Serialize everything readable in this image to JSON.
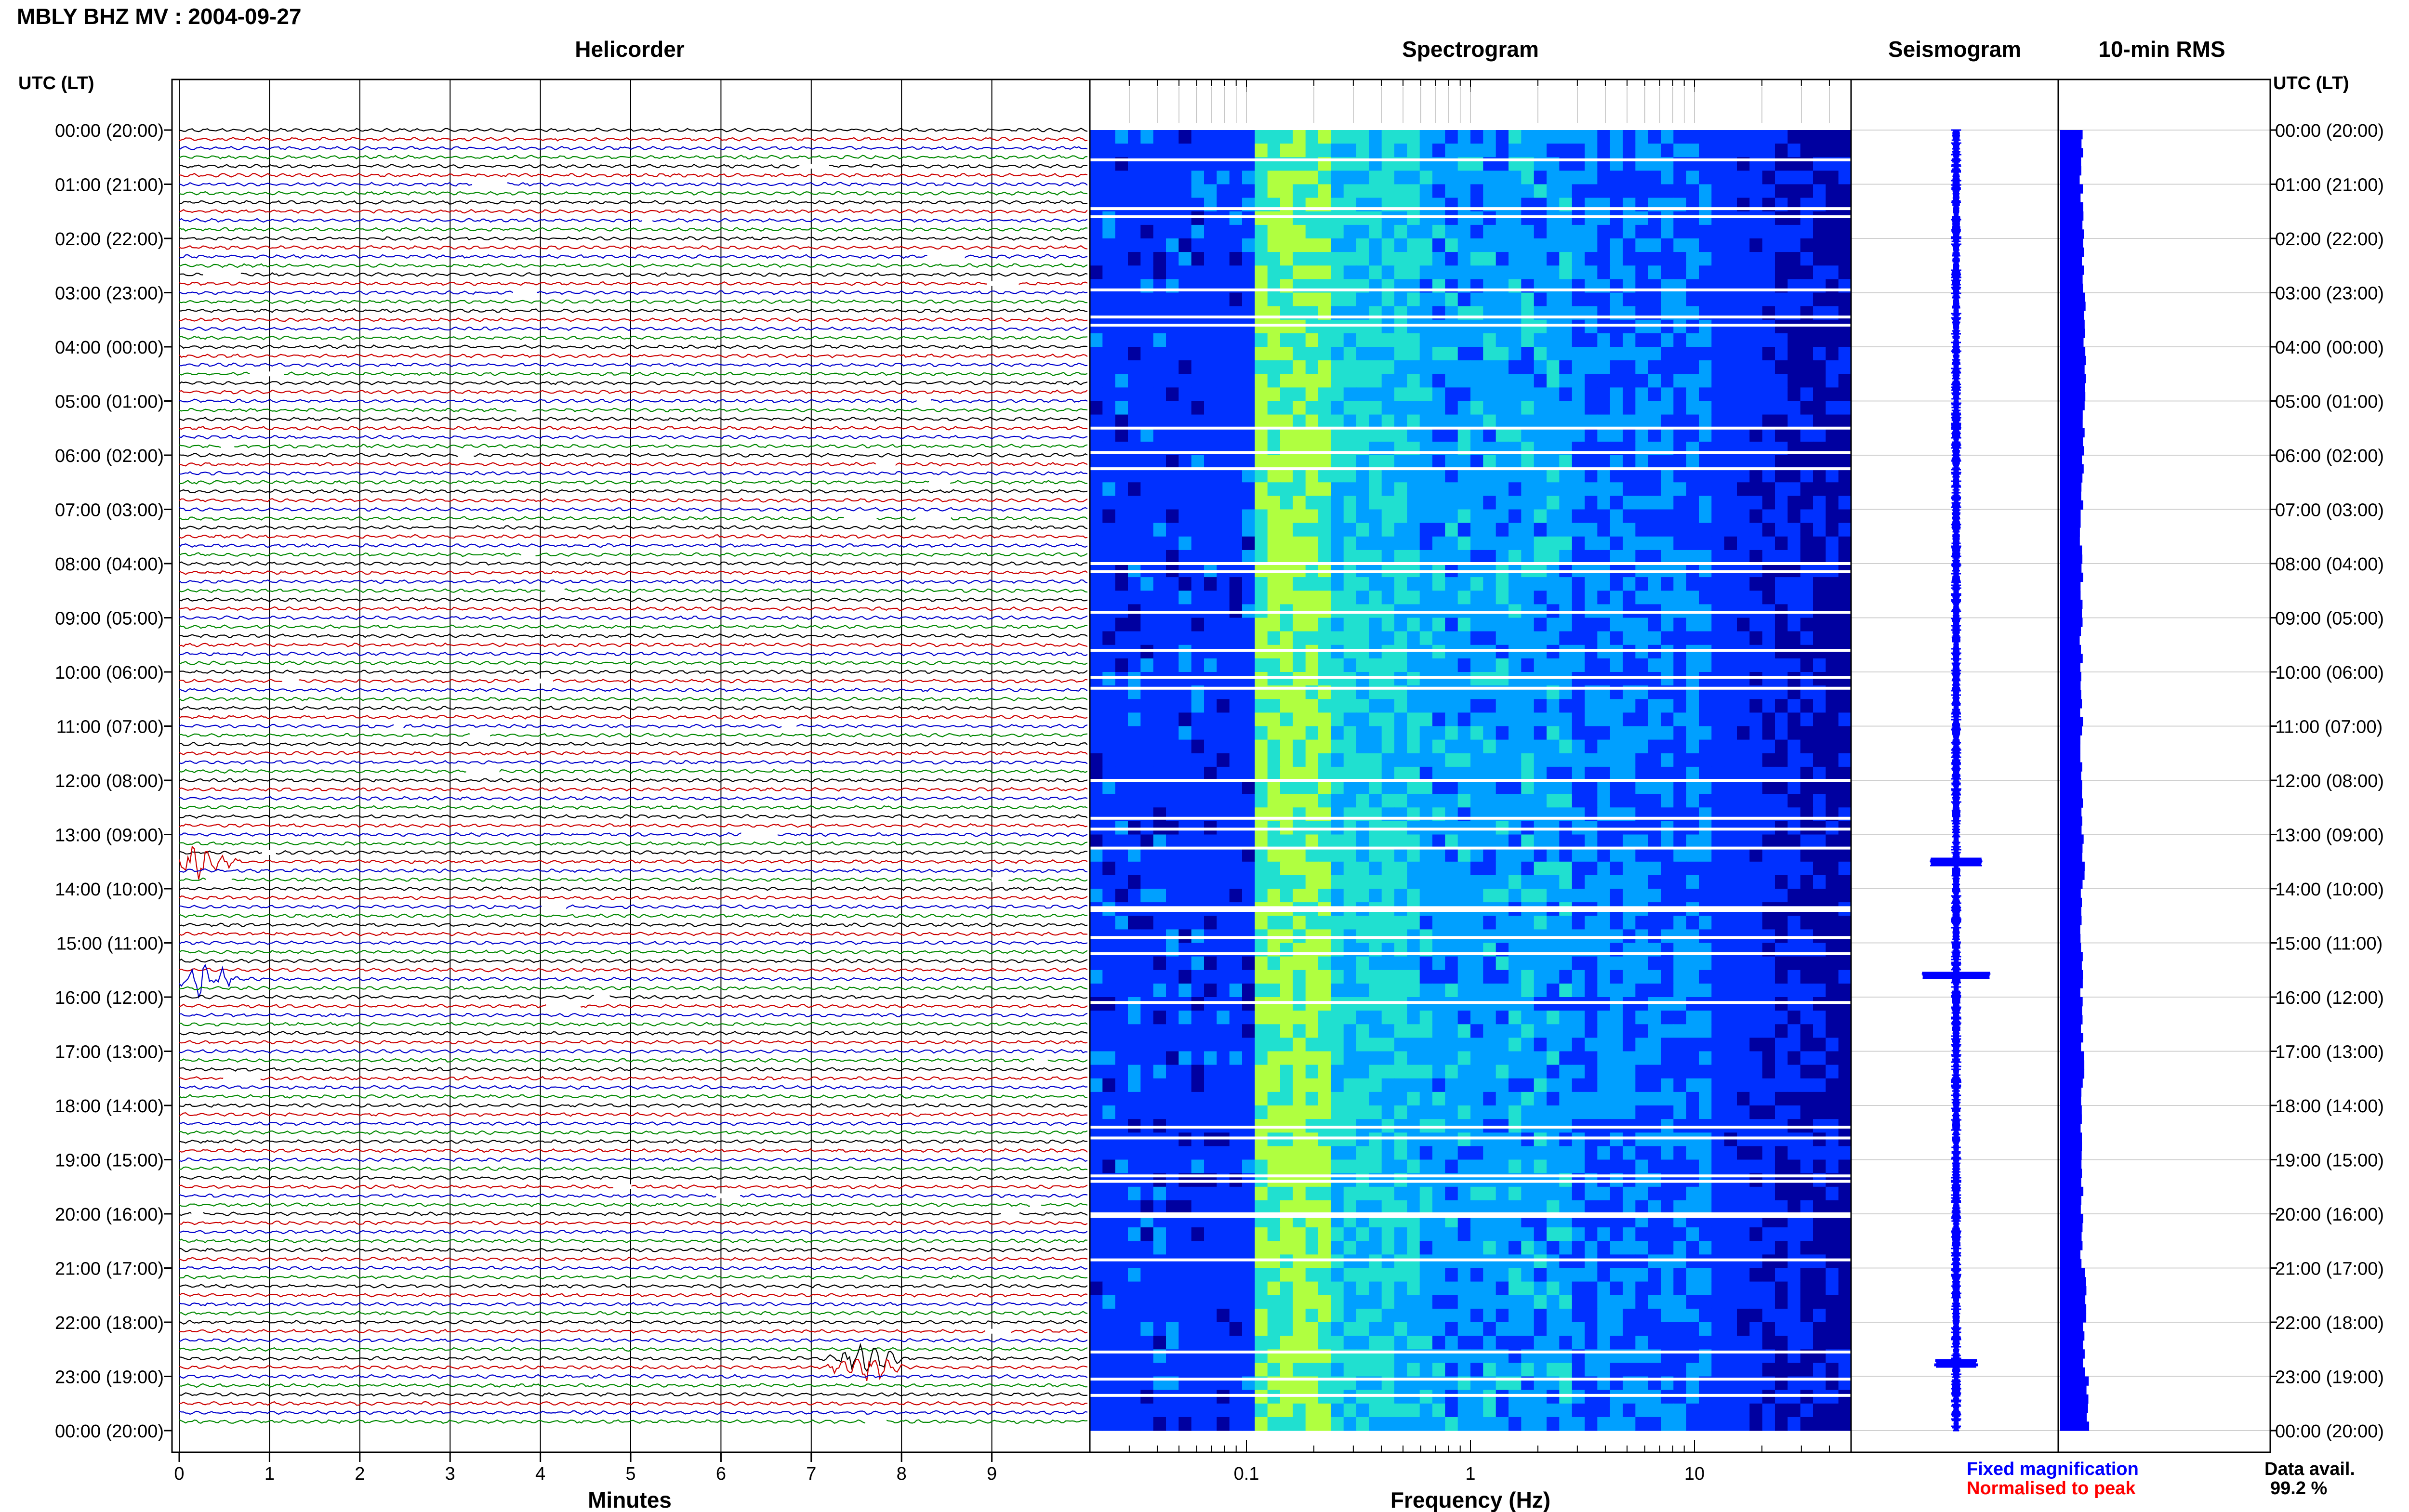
{
  "header": {
    "title": "MBLY BHZ MV : 2004-09-27"
  },
  "chart_data": {
    "type": "helicorder-spectrogram-composite",
    "panels": {
      "helicorder": {
        "title": "Helicorder",
        "xlabel": "Minutes",
        "xticks": [
          "0",
          "1",
          "2",
          "3",
          "4",
          "5",
          "6",
          "7",
          "8",
          "9"
        ],
        "xlim": [
          0,
          10
        ]
      },
      "spectrogram": {
        "title": "Spectrogram",
        "xlabel": "Frequency (Hz)",
        "xticks": [
          "0.1",
          "1",
          "10"
        ],
        "xscale": "log",
        "xlim": [
          0.02,
          50
        ]
      },
      "seismogram": {
        "title": "Seismogram"
      },
      "rms": {
        "title": "10-min RMS"
      }
    },
    "time_axis": {
      "left_title": "UTC (LT)",
      "right_title": "UTC (LT)",
      "labels": [
        "00:00 (20:00)",
        "01:00 (21:00)",
        "02:00 (22:00)",
        "03:00 (23:00)",
        "04:00 (00:00)",
        "05:00 (01:00)",
        "06:00 (02:00)",
        "07:00 (03:00)",
        "08:00 (04:00)",
        "09:00 (05:00)",
        "10:00 (06:00)",
        "11:00 (07:00)",
        "12:00 (08:00)",
        "13:00 (09:00)",
        "14:00 (10:00)",
        "15:00 (11:00)",
        "16:00 (12:00)",
        "17:00 (13:00)",
        "18:00 (14:00)",
        "19:00 (15:00)",
        "20:00 (16:00)",
        "21:00 (17:00)",
        "22:00 (18:00)",
        "23:00 (19:00)",
        "00:00 (20:00)"
      ]
    },
    "trace_colors": [
      "#000000",
      "#cc0000",
      "#0000cc",
      "#008800"
    ],
    "spectrogram_colors": [
      "#0000a0",
      "#0030ff",
      "#00a0ff",
      "#20e0d0",
      "#b0ff40"
    ],
    "rms_color": "#0000ff",
    "gap_hours": [
      0.55,
      1.45,
      1.6,
      2.95,
      3.45,
      3.6,
      5.5,
      5.95,
      6.25,
      8.0,
      8.15,
      8.9,
      9.6,
      10.1,
      10.3,
      12.0,
      12.7,
      12.9,
      13.25,
      14.35,
      14.4,
      14.9,
      15.2,
      16.1,
      18.4,
      18.6,
      19.3,
      19.4,
      20.0,
      20.05,
      20.85,
      22.55,
      23.05,
      23.35
    ],
    "events": [
      {
        "time_hr": 13.5,
        "minute": 0.2,
        "amp": 2.5
      },
      {
        "time_hr": 15.6,
        "minute": 0.2,
        "amp": 3.5
      },
      {
        "time_hr": 22.75,
        "minute": 7.6,
        "amp": 2.0
      }
    ],
    "rms_hourly": [
      5.0,
      5.2,
      5.4,
      5.8,
      5.9,
      5.6,
      5.3,
      5.0,
      5.2,
      5.0,
      5.1,
      5.0,
      5.2,
      5.4,
      5.1,
      5.0,
      5.2,
      5.3,
      5.1,
      5.2,
      5.1,
      5.9,
      5.5,
      6.5
    ],
    "footer": {
      "fixed": "Fixed magnification",
      "normalised": "Normalised to peak",
      "avail_label": "Data avail.",
      "avail_value": "99.2 %",
      "fixed_color": "#0000ff",
      "normalised_color": "#ff0000"
    }
  }
}
